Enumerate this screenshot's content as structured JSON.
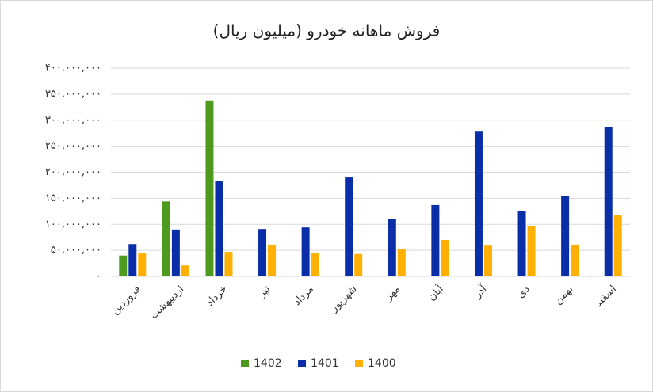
{
  "chart_data": {
    "type": "bar",
    "title": "فروش ماهانه خودرو (میلیون ریال)",
    "categories": [
      "فروردین",
      "اردیبهشت",
      "خرداد",
      "تیر",
      "مرداد",
      "شهریور",
      "مهر",
      "آبان",
      "آذر",
      "دی",
      "بهمن",
      "اسفند"
    ],
    "series": [
      {
        "name": "1402",
        "color": "#4e9a1e",
        "values": [
          40000000,
          144000000,
          338000000,
          null,
          null,
          null,
          null,
          null,
          null,
          null,
          null,
          null
        ]
      },
      {
        "name": "1401",
        "color": "#0a2ea8",
        "values": [
          62000000,
          90000000,
          184000000,
          91000000,
          94000000,
          190000000,
          110000000,
          137000000,
          278000000,
          125000000,
          154000000,
          287000000
        ]
      },
      {
        "name": "1400",
        "color": "#ffb000",
        "values": [
          44000000,
          21000000,
          47000000,
          61000000,
          44000000,
          43000000,
          53000000,
          70000000,
          59000000,
          97000000,
          61000000,
          117000000
        ]
      }
    ],
    "ylim": [
      0,
      400000000
    ],
    "yticks": [
      {
        "value": 0,
        "label": "۰"
      },
      {
        "value": 50000000,
        "label": "۵۰,۰۰۰,۰۰۰"
      },
      {
        "value": 100000000,
        "label": "۱۰۰,۰۰۰,۰۰۰"
      },
      {
        "value": 150000000,
        "label": "۱۵۰,۰۰۰,۰۰۰"
      },
      {
        "value": 200000000,
        "label": "۲۰۰,۰۰۰,۰۰۰"
      },
      {
        "value": 250000000,
        "label": "۲۵۰,۰۰۰,۰۰۰"
      },
      {
        "value": 300000000,
        "label": "۳۰۰,۰۰۰,۰۰۰"
      },
      {
        "value": 350000000,
        "label": "۳۵۰,۰۰۰,۰۰۰"
      },
      {
        "value": 400000000,
        "label": "۴۰۰,۰۰۰,۰۰۰"
      }
    ],
    "grid": true,
    "legend": "bottom"
  }
}
